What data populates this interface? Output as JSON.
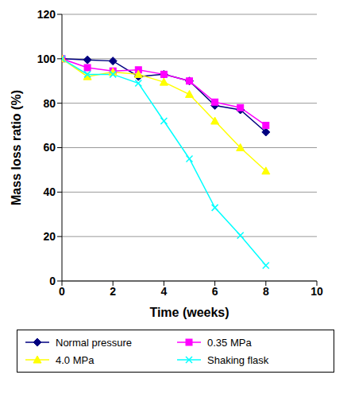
{
  "chart_data": {
    "type": "line",
    "x_label": "Time (weeks)",
    "y_label": "Mass loss ratio (%)",
    "x": [
      0,
      1,
      2,
      3,
      4,
      5,
      6,
      7,
      8
    ],
    "series": [
      {
        "name": "Normal pressure",
        "color": "#000080",
        "marker": "diamond",
        "values": [
          100,
          99.5,
          99,
          92,
          93,
          90,
          79,
          77,
          67
        ]
      },
      {
        "name": "0.35 MPa",
        "color": "#ff00ff",
        "marker": "square",
        "values": [
          100,
          96,
          94.5,
          95,
          93,
          90,
          80.5,
          78,
          70
        ]
      },
      {
        "name": "4.0 MPa",
        "color": "#ffff00",
        "marker": "triangle",
        "values": [
          100,
          92,
          94,
          93,
          89.5,
          84,
          72,
          60,
          49.5
        ]
      },
      {
        "name": "Shaking flask",
        "color": "#00ffff",
        "marker": "x",
        "values": [
          100,
          93,
          93,
          89,
          72,
          55,
          33,
          20.5,
          7
        ]
      }
    ],
    "xlim": [
      0,
      10
    ],
    "xticks": [
      0,
      2,
      4,
      6,
      8,
      10
    ],
    "ylim": [
      0,
      120
    ],
    "yticks": [
      0,
      20,
      40,
      60,
      80,
      100,
      120
    ],
    "grid": true,
    "legend": "bottom"
  }
}
